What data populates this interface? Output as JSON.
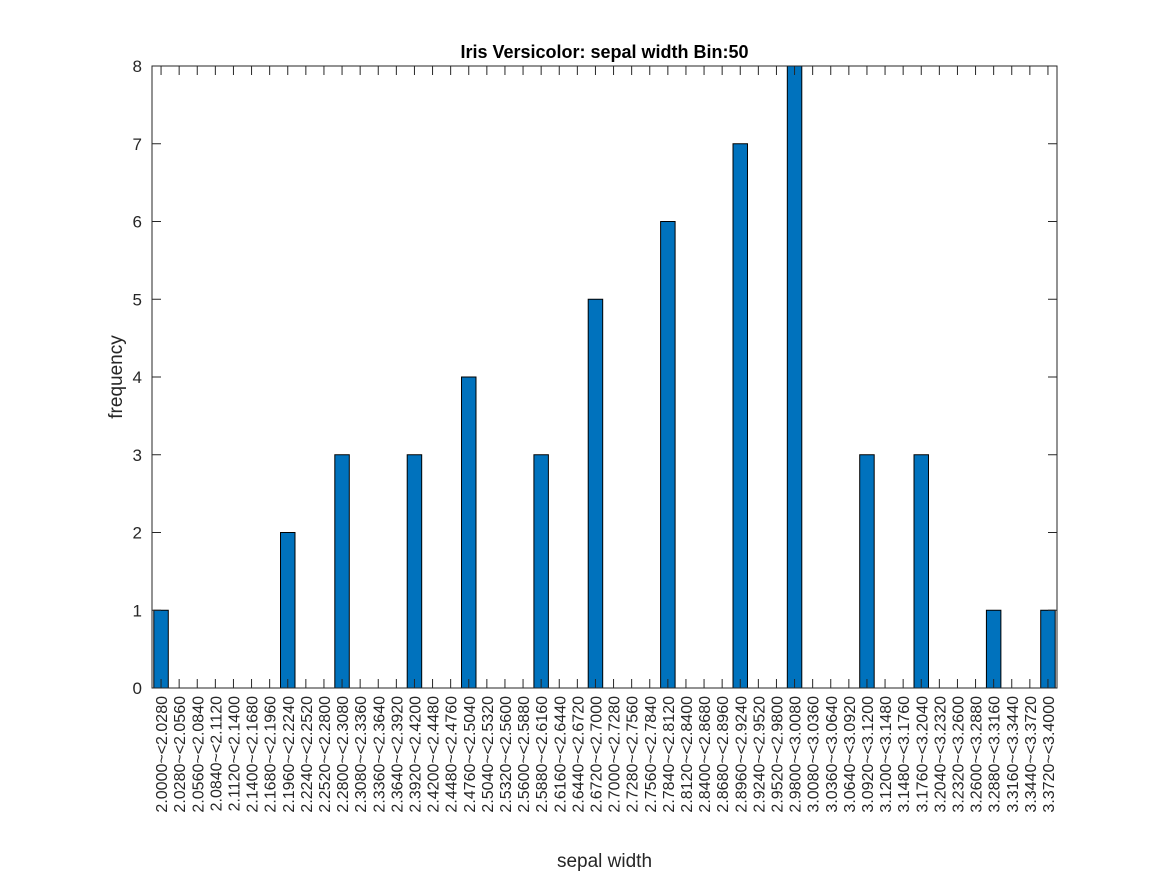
{
  "chart_data": {
    "type": "bar",
    "title": "Iris Versicolor: sepal width Bin:50",
    "xlabel": "sepal width",
    "ylabel": "frequency",
    "ylim": [
      0,
      8
    ],
    "yticks": [
      "0",
      "1",
      "2",
      "3",
      "4",
      "5",
      "6",
      "7",
      "8"
    ],
    "grid": false,
    "bar_color": "#0072BD",
    "bar_edge_color": "#000000",
    "categories": [
      "2.0000~<2.0280",
      "2.0280~<2.0560",
      "2.0560~<2.0840",
      "2.0840~<2.1120",
      "2.1120~<2.1400",
      "2.1400~<2.1680",
      "2.1680~<2.1960",
      "2.1960~<2.2240",
      "2.2240~<2.2520",
      "2.2520~<2.2800",
      "2.2800~<2.3080",
      "2.3080~<2.3360",
      "2.3360~<2.3640",
      "2.3640~<2.3920",
      "2.3920~<2.4200",
      "2.4200~<2.4480",
      "2.4480~<2.4760",
      "2.4760~<2.5040",
      "2.5040~<2.5320",
      "2.5320~<2.5600",
      "2.5600~<2.5880",
      "2.5880~<2.6160",
      "2.6160~<2.6440",
      "2.6440~<2.6720",
      "2.6720~<2.7000",
      "2.7000~<2.7280",
      "2.7280~<2.7560",
      "2.7560~<2.7840",
      "2.7840~<2.8120",
      "2.8120~<2.8400",
      "2.8400~<2.8680",
      "2.8680~<2.8960",
      "2.8960~<2.9240",
      "2.9240~<2.9520",
      "2.9520~<2.9800",
      "2.9800~<3.0080",
      "3.0080~<3.0360",
      "3.0360~<3.0640",
      "3.0640~<3.0920",
      "3.0920~<3.1200",
      "3.1200~<3.1480",
      "3.1480~<3.1760",
      "3.1760~<3.2040",
      "3.2040~<3.2320",
      "3.2320~<3.2600",
      "3.2600~<3.2880",
      "3.2880~<3.3160",
      "3.3160~<3.3440",
      "3.3440~<3.3720",
      "3.3720~<3.4000"
    ],
    "values": [
      1,
      0,
      0,
      0,
      0,
      0,
      0,
      2,
      0,
      0,
      3,
      0,
      0,
      0,
      3,
      0,
      0,
      4,
      0,
      0,
      0,
      3,
      0,
      0,
      5,
      0,
      0,
      0,
      6,
      0,
      0,
      0,
      7,
      0,
      0,
      8,
      0,
      0,
      0,
      3,
      0,
      0,
      3,
      0,
      0,
      0,
      1,
      0,
      0,
      1
    ]
  }
}
